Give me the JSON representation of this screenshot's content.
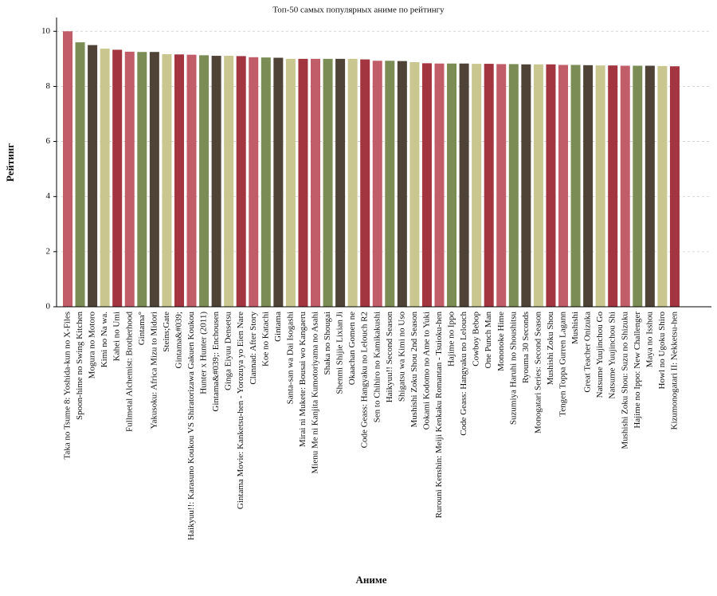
{
  "chart_data": {
    "type": "bar",
    "title": "Топ-50 самых популярных аниме по рейтингу",
    "x_label": "Аниме",
    "y_label": "Рейтинг",
    "categories": [
      "Taka no Tsume 8: Yoshida-kun no X-Files",
      "Spoon-hime no Swing Kitchen",
      "Mogura no Motoro",
      "Kimi no Na wa.",
      "Kahei no Umi",
      "Fullmetal Alchemist: Brotherhood",
      "Gintama°",
      "Yakusoku: Africa Mizu to Midori",
      "Steins;Gate",
      "Gintama&#039;",
      "Haikyuu!!: Karasuno Koukou VS Shiratorizawa Gakuen Koukou",
      "Hunter x Hunter (2011)",
      "Gintama&#039;: Enchousen",
      "Ginga Eiyuu Densetsu",
      "Gintama Movie: Kanketsu-hen - Yorozuya yo Eien Nare",
      "Clannad: After Story",
      "Koe no Katachi",
      "Gintama",
      "Santa-san wa Dai Isogashi",
      "Mirai ni Mukete: Bousai wo Kangaeru",
      "Mienu Me ni Kanjita Kumotoriyama no Asahi",
      "Shaka no Shougai",
      "Shenmi Shijie Lixian Ji",
      "Okaachan Gomen ne",
      "Code Geass: Hangyaku no Lelouch R2",
      "Sen to Chihiro no Kamikakushi",
      "Haikyuu!! Second Season",
      "Shigatsu wa Kimi no Uso",
      "Mushishi Zoku Shou 2nd Season",
      "Ookami Kodomo no Ame to Yuki",
      "Rurouni Kenshin: Meiji Kenkaku Romantan - Tsuioku-hen",
      "Hajime no Ippo",
      "Code Geass: Hangyaku no Lelouch",
      "Cowboy Bebop",
      "One Punch Man",
      "Mononoke Hime",
      "Suzumiya Haruhi no Shoushitsu",
      "Ryouma 30 Seconds",
      "Monogatari Series: Second Season",
      "Mushishi Zoku Shou",
      "Tengen Toppa Gurren Lagann",
      "Mushishi",
      "Great Teacher Onizuka",
      "Natsume Yuujinchou Go",
      "Natsume Yuujinchou Shi",
      "Mushishi Zoku Shou: Suzu no Shizuku",
      "Hajime no Ippo: New Challenger",
      "Maya no Isshou",
      "Howl no Ugoku Shiro",
      "Kizumonogatari II: Nekketsu-hen"
    ],
    "values": [
      10.0,
      9.6,
      9.5,
      9.37,
      9.33,
      9.26,
      9.25,
      9.25,
      9.17,
      9.16,
      9.15,
      9.13,
      9.11,
      9.11,
      9.1,
      9.06,
      9.05,
      9.04,
      9.0,
      9.0,
      9.0,
      9.0,
      9.0,
      9.0,
      8.98,
      8.93,
      8.93,
      8.92,
      8.88,
      8.84,
      8.83,
      8.83,
      8.83,
      8.82,
      8.82,
      8.81,
      8.81,
      8.8,
      8.8,
      8.8,
      8.78,
      8.78,
      8.77,
      8.76,
      8.76,
      8.75,
      8.75,
      8.75,
      8.74,
      8.73
    ],
    "colors": [
      "#c15d69",
      "#7b8d55",
      "#4f4337",
      "#c9c78f",
      "#a2353f"
    ],
    "ylim": [
      0,
      10.5
    ],
    "yticks": [
      0,
      2,
      4,
      6,
      8,
      10
    ],
    "grid": true
  }
}
